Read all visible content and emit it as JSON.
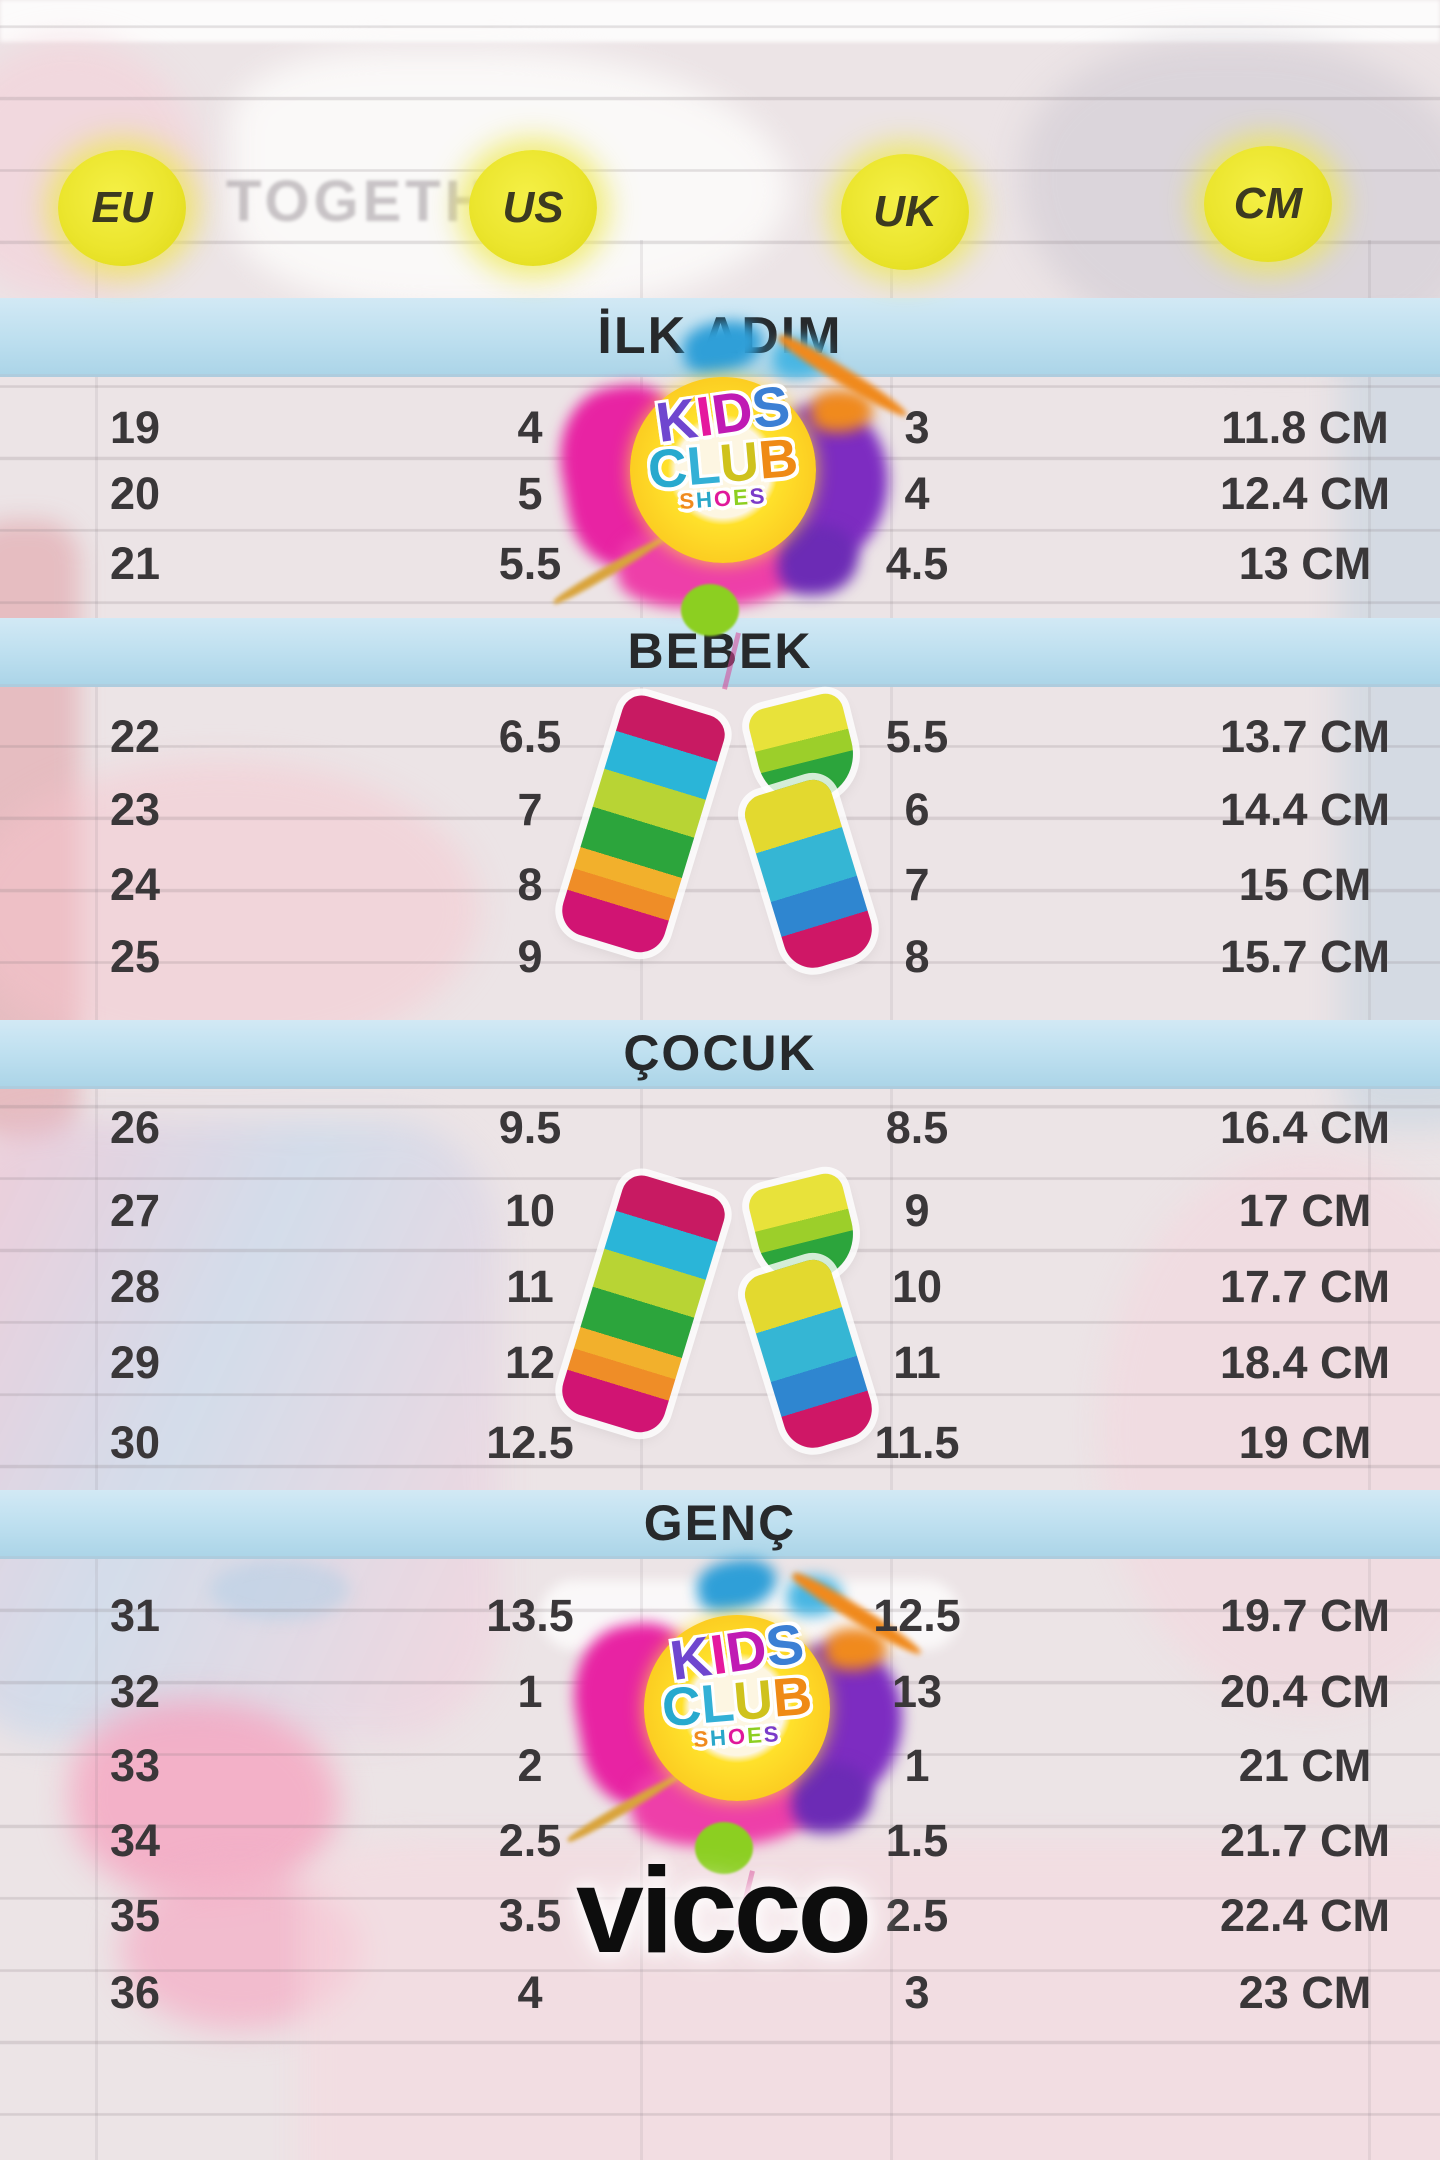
{
  "watermark": "TOGETHER",
  "columns": [
    {
      "id": "eu",
      "label": "EU"
    },
    {
      "id": "us",
      "label": "US"
    },
    {
      "id": "uk",
      "label": "UK"
    },
    {
      "id": "cm",
      "label": "CM"
    }
  ],
  "sections": [
    {
      "label": "İLK ADIM",
      "rows": [
        [
          "19",
          "4",
          "3",
          "11.8 CM"
        ],
        [
          "20",
          "5",
          "4",
          "12.4 CM"
        ],
        [
          "21",
          "5.5",
          "4.5",
          "13 CM"
        ]
      ]
    },
    {
      "label": "BEBEK",
      "rows": [
        [
          "22",
          "6.5",
          "5.5",
          "13.7 CM"
        ],
        [
          "23",
          "7",
          "6",
          "14.4 CM"
        ],
        [
          "24",
          "8",
          "7",
          "15 CM"
        ],
        [
          "25",
          "9",
          "8",
          "15.7 CM"
        ]
      ]
    },
    {
      "label": "ÇOCUK",
      "rows": [
        [
          "26",
          "9.5",
          "8.5",
          "16.4 CM"
        ],
        [
          "27",
          "10",
          "9",
          "17 CM"
        ],
        [
          "28",
          "11",
          "10",
          "17.7 CM"
        ],
        [
          "29",
          "12",
          "11",
          "18.4 CM"
        ],
        [
          "30",
          "12.5",
          "11.5",
          "19 CM"
        ]
      ]
    },
    {
      "label": "GENÇ",
      "rows": [
        [
          "31",
          "13.5",
          "12.5",
          "19.7 CM"
        ],
        [
          "32",
          "1",
          "13",
          "20.4 CM"
        ],
        [
          "33",
          "2",
          "1",
          "21 CM"
        ],
        [
          "34",
          "2.5",
          "1.5",
          "21.7 CM"
        ],
        [
          "35",
          "3.5",
          "2.5",
          "22.4 CM"
        ],
        [
          "36",
          "4",
          "3",
          "23 CM"
        ]
      ]
    }
  ],
  "logos": {
    "kids_club": {
      "word1": "KIDS",
      "word2": "CLUB",
      "word3": "SHOES"
    },
    "vicco_wordmark": "vicco"
  },
  "colors": {
    "band_blue": "#bddfef",
    "header_yellow": "#ebe52d",
    "text_dark": "#3a3739",
    "background": "#ece4e6"
  }
}
